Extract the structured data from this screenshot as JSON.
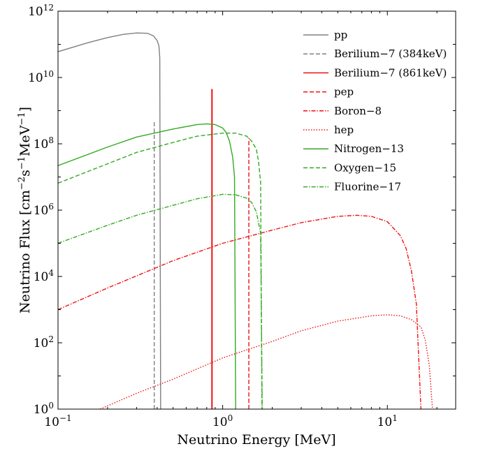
{
  "chart_data": {
    "type": "line",
    "title": "",
    "xlabel": "Neutrino Energy [MeV]",
    "ylabel": {
      "prefix": "Neutrino Flux [cm",
      "exp1": "−2",
      "mid1": "s",
      "exp2": "−1",
      "mid2": "MeV",
      "exp3": "−1",
      "suffix": "]"
    },
    "xscale": "log",
    "yscale": "log",
    "xlim": [
      0.1,
      26
    ],
    "ylim": [
      1,
      1000000000000
    ],
    "legend_position": "top-right",
    "xticks": [
      {
        "value": 0.1,
        "base": "10",
        "exp": "−1"
      },
      {
        "value": 1,
        "base": "10",
        "exp": "0"
      },
      {
        "value": 10,
        "base": "10",
        "exp": "1"
      }
    ],
    "yticks": [
      {
        "value": 1,
        "base": "10",
        "exp": "0"
      },
      {
        "value": 100,
        "base": "10",
        "exp": "2"
      },
      {
        "value": 10000,
        "base": "10",
        "exp": "4"
      },
      {
        "value": 1000000,
        "base": "10",
        "exp": "6"
      },
      {
        "value": 100000000,
        "base": "10",
        "exp": "8"
      },
      {
        "value": 10000000000,
        "base": "10",
        "exp": "10"
      },
      {
        "value": 1000000000000,
        "base": "10",
        "exp": "12"
      }
    ],
    "series": [
      {
        "name": "pp",
        "color": "#808080",
        "dash": "solid",
        "points": [
          [
            0.1,
            60000000000
          ],
          [
            0.15,
            110000000000
          ],
          [
            0.2,
            160000000000
          ],
          [
            0.25,
            200000000000
          ],
          [
            0.3,
            220000000000
          ],
          [
            0.35,
            215000000000
          ],
          [
            0.38,
            180000000000
          ],
          [
            0.4,
            130000000000
          ],
          [
            0.41,
            90000000000
          ],
          [
            0.415,
            40000000000
          ],
          [
            0.42,
            1
          ]
        ]
      },
      {
        "name": "Berilium−7 (384keV)",
        "color": "#808080",
        "dash": "dashed",
        "points": [
          [
            0.384,
            1
          ],
          [
            0.384,
            500000000
          ]
        ]
      },
      {
        "name": "Berilium−7 (861keV)",
        "color": "#ee1111",
        "dash": "solid",
        "points": [
          [
            0.861,
            1
          ],
          [
            0.861,
            4500000000
          ]
        ]
      },
      {
        "name": "pep",
        "color": "#ee1111",
        "dash": "dashed",
        "points": [
          [
            1.442,
            1
          ],
          [
            1.442,
            150000000
          ]
        ]
      },
      {
        "name": "Boron−8",
        "color": "#ee1111",
        "dash": "dashdot",
        "points": [
          [
            0.1,
            1000
          ],
          [
            0.2,
            4500
          ],
          [
            0.5,
            30000
          ],
          [
            1,
            100000
          ],
          [
            2,
            250000
          ],
          [
            3,
            420000
          ],
          [
            5,
            650000
          ],
          [
            6.5,
            700000
          ],
          [
            8,
            650000
          ],
          [
            10,
            450000
          ],
          [
            12,
            170000
          ],
          [
            13,
            70000
          ],
          [
            14,
            15000
          ],
          [
            15,
            1500
          ],
          [
            16,
            1
          ]
        ]
      },
      {
        "name": "hep",
        "color": "#ee1111",
        "dash": "dotted",
        "points": [
          [
            0.18,
            1
          ],
          [
            0.3,
            3
          ],
          [
            0.5,
            8
          ],
          [
            1,
            35
          ],
          [
            2,
            110
          ],
          [
            3,
            230
          ],
          [
            5,
            450
          ],
          [
            8,
            650
          ],
          [
            10,
            700
          ],
          [
            12,
            650
          ],
          [
            14,
            500
          ],
          [
            16,
            300
          ],
          [
            17,
            120
          ],
          [
            18,
            20
          ],
          [
            18.5,
            3
          ],
          [
            18.8,
            1
          ]
        ]
      },
      {
        "name": "Nitrogen−13",
        "color": "#33aa22",
        "dash": "solid",
        "points": [
          [
            0.1,
            22000000
          ],
          [
            0.2,
            80000000
          ],
          [
            0.3,
            160000000
          ],
          [
            0.5,
            280000000
          ],
          [
            0.7,
            380000000
          ],
          [
            0.8,
            400000000
          ],
          [
            0.9,
            380000000
          ],
          [
            1,
            300000000
          ],
          [
            1.05,
            220000000
          ],
          [
            1.1,
            120000000
          ],
          [
            1.15,
            40000000
          ],
          [
            1.18,
            10000000
          ],
          [
            1.199,
            1
          ]
        ]
      },
      {
        "name": "Oxygen−15",
        "color": "#33aa22",
        "dash": "dashed",
        "points": [
          [
            0.1,
            6500000
          ],
          [
            0.2,
            25000000
          ],
          [
            0.3,
            55000000
          ],
          [
            0.5,
            110000000
          ],
          [
            0.7,
            170000000
          ],
          [
            1,
            210000000
          ],
          [
            1.2,
            210000000
          ],
          [
            1.4,
            170000000
          ],
          [
            1.5,
            120000000
          ],
          [
            1.6,
            70000000
          ],
          [
            1.65,
            30000000
          ],
          [
            1.7,
            7000000
          ],
          [
            1.732,
            1
          ]
        ]
      },
      {
        "name": "Fluorine−17",
        "color": "#33aa22",
        "dash": "dashdot",
        "points": [
          [
            0.1,
            100000
          ],
          [
            0.2,
            350000
          ],
          [
            0.3,
            700000
          ],
          [
            0.5,
            1400000
          ],
          [
            0.7,
            2200000
          ],
          [
            1,
            3000000
          ],
          [
            1.2,
            2900000
          ],
          [
            1.4,
            2300000
          ],
          [
            1.5,
            1700000
          ],
          [
            1.6,
            900000
          ],
          [
            1.7,
            200000
          ],
          [
            1.74,
            1
          ]
        ]
      }
    ]
  }
}
